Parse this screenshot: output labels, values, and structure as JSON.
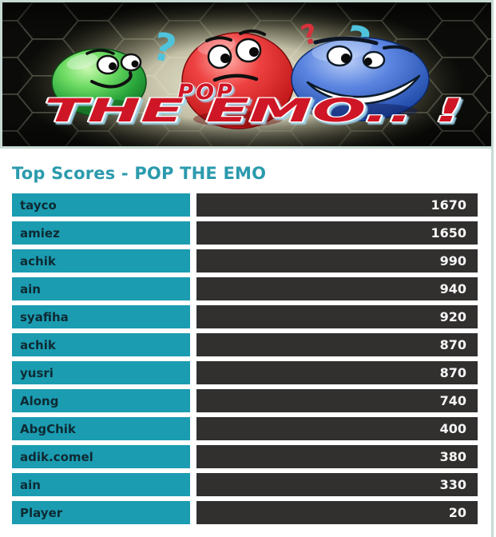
{
  "banner": {
    "line1": "POP",
    "line2": "THE EMO.. !",
    "question_marks": [
      "?",
      "?",
      "?"
    ]
  },
  "header": {
    "title": "Top Scores - POP THE EMO"
  },
  "scores": {
    "rows": [
      {
        "name": "tayco",
        "score": "1670"
      },
      {
        "name": "amiez",
        "score": "1650"
      },
      {
        "name": "achik",
        "score": "990"
      },
      {
        "name": "ain",
        "score": "940"
      },
      {
        "name": "syafiha",
        "score": "920"
      },
      {
        "name": "achik",
        "score": "870"
      },
      {
        "name": "yusri",
        "score": "870"
      },
      {
        "name": "Along",
        "score": "740"
      },
      {
        "name": "AbgChik",
        "score": "400"
      },
      {
        "name": "adik.comel",
        "score": "380"
      },
      {
        "name": "ain",
        "score": "330"
      },
      {
        "name": "Player",
        "score": "20"
      }
    ]
  },
  "colors": {
    "accent_teal": "#1b9cb1",
    "title_teal": "#2b9aad",
    "score_cell_dark": "#322f2f",
    "page_border": "#c8dad3",
    "banner_text_red": "#cf1326",
    "ball_green": "#2aa63c",
    "ball_red": "#d32026",
    "ball_blue": "#2a55b8",
    "question_mark_cyan": "#4fc3db",
    "question_mark_red": "#d6323d"
  }
}
